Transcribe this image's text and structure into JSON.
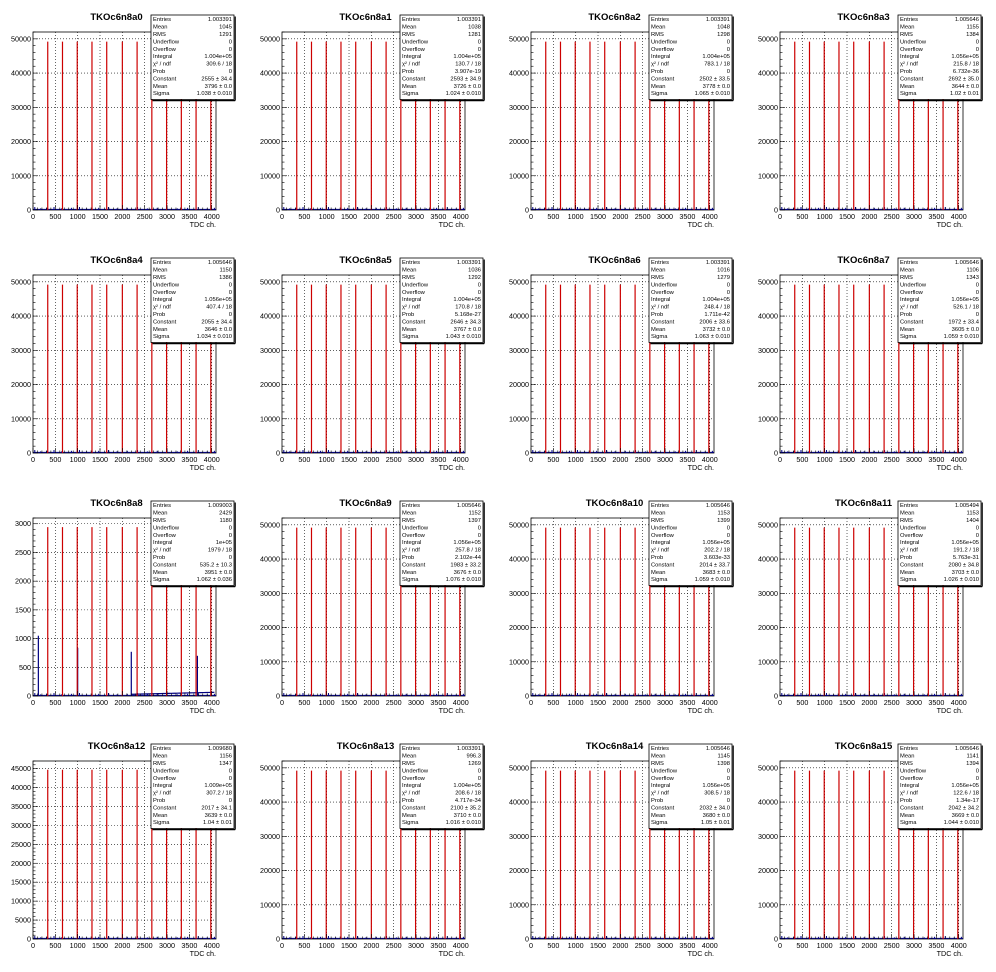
{
  "x_axis_label": "TDC ch.",
  "x_ticks": [
    "0",
    "500",
    "1000",
    "1500",
    "2000",
    "2500",
    "3000",
    "3500",
    "4000"
  ],
  "stats_labels": [
    "Entries",
    "Mean",
    "RMS",
    "Underflow",
    "Overflow",
    "Integral",
    "χ² / ndf",
    "Prob",
    "Constant",
    "Mean",
    "Sigma"
  ],
  "chart_data": [
    {
      "type": "bar",
      "title": "TKOc6n8a0",
      "xlim": [
        0,
        4096
      ],
      "ylim": [
        0,
        52000
      ],
      "y_ticks": [
        0,
        10000,
        20000,
        30000,
        40000,
        50000
      ],
      "peaks": [
        330,
        660,
        990,
        1320,
        1650,
        2000,
        2330,
        2660,
        2990,
        3320,
        3650,
        3980
      ],
      "peak_height": 49200,
      "stats": [
        "1.003391",
        "1045",
        "1291",
        "0",
        "0",
        "1.004e+05",
        "309.6 / 18",
        "0",
        "2555 ± 34.4",
        "3796 ± 0.0",
        "1.038 ± 0.010"
      ]
    },
    {
      "type": "bar",
      "title": "TKOc6n8a1",
      "xlim": [
        0,
        4096
      ],
      "ylim": [
        0,
        52000
      ],
      "y_ticks": [
        0,
        10000,
        20000,
        30000,
        40000,
        50000
      ],
      "peaks": [
        330,
        660,
        990,
        1320,
        1650,
        2000,
        2330,
        2660,
        2990,
        3320,
        3650,
        3980
      ],
      "peak_height": 49200,
      "stats": [
        "1.003391",
        "1038",
        "1281",
        "0",
        "0",
        "1.004e+05",
        "130.7 / 18",
        "3.907e-19",
        "2593 ± 34.9",
        "3726 ± 0.0",
        "1.024 ± 0.010"
      ]
    },
    {
      "type": "bar",
      "title": "TKOc6n8a2",
      "xlim": [
        0,
        4096
      ],
      "ylim": [
        0,
        52000
      ],
      "y_ticks": [
        0,
        10000,
        20000,
        30000,
        40000,
        50000
      ],
      "peaks": [
        330,
        660,
        990,
        1320,
        1650,
        2000,
        2330,
        2660,
        2990,
        3320,
        3650,
        3980
      ],
      "peak_height": 49200,
      "stats": [
        "1.003391",
        "1048",
        "1298",
        "0",
        "0",
        "1.004e+05",
        "783.1 / 18",
        "0",
        "2502 ± 33.5",
        "3778 ± 0.0",
        "1.065 ± 0.010"
      ]
    },
    {
      "type": "bar",
      "title": "TKOc6n8a3",
      "xlim": [
        0,
        4096
      ],
      "ylim": [
        0,
        52000
      ],
      "y_ticks": [
        0,
        10000,
        20000,
        30000,
        40000,
        50000
      ],
      "peaks": [
        330,
        660,
        990,
        1320,
        1650,
        2000,
        2330,
        2660,
        2990,
        3320,
        3650,
        3980
      ],
      "peak_height": 49200,
      "stats": [
        "1.005646",
        "1155",
        "1384",
        "0",
        "0",
        "1.056e+05",
        "215.8 / 18",
        "6.732e-36",
        "2692 ± 35.0",
        "3644 ± 0.0",
        "1.02 ± 0.01"
      ]
    },
    {
      "type": "bar",
      "title": "TKOc6n8a4",
      "xlim": [
        0,
        4096
      ],
      "ylim": [
        0,
        52000
      ],
      "y_ticks": [
        0,
        10000,
        20000,
        30000,
        40000,
        50000
      ],
      "peaks": [
        330,
        660,
        990,
        1320,
        1650,
        2000,
        2330,
        2660,
        2990,
        3320,
        3650,
        3980
      ],
      "peak_height": 49200,
      "stats": [
        "1.005646",
        "1150",
        "1386",
        "0",
        "0",
        "1.056e+05",
        "407.4 / 18",
        "0",
        "2055 ± 34.4",
        "3646 ± 0.0",
        "1.034 ± 0.010"
      ]
    },
    {
      "type": "bar",
      "title": "TKOc6n8a5",
      "xlim": [
        0,
        4096
      ],
      "ylim": [
        0,
        52000
      ],
      "y_ticks": [
        0,
        10000,
        20000,
        30000,
        40000,
        50000
      ],
      "peaks": [
        330,
        660,
        990,
        1320,
        1650,
        2000,
        2330,
        2660,
        2990,
        3320,
        3650,
        3980
      ],
      "peak_height": 49200,
      "stats": [
        "1.003391",
        "1036",
        "1292",
        "0",
        "0",
        "1.004e+05",
        "170.8 / 18",
        "5.168e-27",
        "2646 ± 34.3",
        "3767 ± 0.0",
        "1.043 ± 0.010"
      ]
    },
    {
      "type": "bar",
      "title": "TKOc6n8a6",
      "xlim": [
        0,
        4096
      ],
      "ylim": [
        0,
        52000
      ],
      "y_ticks": [
        0,
        10000,
        20000,
        30000,
        40000,
        50000
      ],
      "peaks": [
        330,
        660,
        990,
        1320,
        1650,
        2000,
        2330,
        2660,
        2990,
        3320,
        3650,
        3980
      ],
      "peak_height": 49200,
      "stats": [
        "1.003391",
        "1016",
        "1279",
        "0",
        "0",
        "1.004e+05",
        "248.4 / 18",
        "1.711e-42",
        "2006 ± 33.6",
        "3732 ± 0.0",
        "1.063 ± 0.010"
      ]
    },
    {
      "type": "bar",
      "title": "TKOc6n8a7",
      "xlim": [
        0,
        4096
      ],
      "ylim": [
        0,
        52000
      ],
      "y_ticks": [
        0,
        10000,
        20000,
        30000,
        40000,
        50000
      ],
      "peaks": [
        330,
        660,
        990,
        1320,
        1650,
        2000,
        2330,
        2660,
        2990,
        3320,
        3650,
        3980
      ],
      "peak_height": 49200,
      "stats": [
        "1.005646",
        "1106",
        "1343",
        "0",
        "0",
        "1.056e+05",
        "526.1 / 18",
        "0",
        "1972 ± 33.4",
        "3605 ± 0.0",
        "1.059 ± 0.010"
      ]
    },
    {
      "type": "bar",
      "title": "TKOc6n8a8",
      "xlim": [
        0,
        4096
      ],
      "ylim": [
        0,
        3100
      ],
      "y_ticks": [
        0,
        500,
        1000,
        1500,
        2000,
        2500,
        3000
      ],
      "peaks": [
        330,
        660,
        990,
        1320,
        1650,
        2000,
        2330,
        2660,
        2990,
        3320,
        3650,
        3980
      ],
      "peak_height": 2940,
      "stats": [
        "1.009003",
        "2429",
        "1180",
        "0",
        "0",
        "1e+05",
        "1979 / 18",
        "0",
        "535.2 ± 10.3",
        "3951 ± 0.0",
        "1.062 ± 0.036"
      ]
    },
    {
      "type": "bar",
      "title": "TKOc6n8a9",
      "xlim": [
        0,
        4096
      ],
      "ylim": [
        0,
        52000
      ],
      "y_ticks": [
        0,
        10000,
        20000,
        30000,
        40000,
        50000
      ],
      "peaks": [
        330,
        660,
        990,
        1320,
        1650,
        2000,
        2330,
        2660,
        2990,
        3320,
        3650,
        3980
      ],
      "peak_height": 49200,
      "stats": [
        "1.005646",
        "1152",
        "1397",
        "0",
        "0",
        "1.056e+05",
        "257.8 / 18",
        "2.102e-44",
        "1983 ± 33.2",
        "3676 ± 0.0",
        "1.076 ± 0.010"
      ]
    },
    {
      "type": "bar",
      "title": "TKOc6n8a10",
      "xlim": [
        0,
        4096
      ],
      "ylim": [
        0,
        52000
      ],
      "y_ticks": [
        0,
        10000,
        20000,
        30000,
        40000,
        50000
      ],
      "peaks": [
        330,
        660,
        990,
        1320,
        1650,
        2000,
        2330,
        2660,
        2990,
        3320,
        3650,
        3980
      ],
      "peak_height": 49200,
      "stats": [
        "1.005646",
        "1153",
        "1399",
        "0",
        "0",
        "1.056e+05",
        "202.2 / 18",
        "3.603e-33",
        "2014 ± 33.7",
        "3683 ± 0.0",
        "1.059 ± 0.010"
      ]
    },
    {
      "type": "bar",
      "title": "TKOc6n8a11",
      "xlim": [
        0,
        4096
      ],
      "ylim": [
        0,
        52000
      ],
      "y_ticks": [
        0,
        10000,
        20000,
        30000,
        40000,
        50000
      ],
      "peaks": [
        330,
        660,
        990,
        1320,
        1650,
        2000,
        2330,
        2660,
        2990,
        3320,
        3650,
        3980
      ],
      "peak_height": 49200,
      "stats": [
        "1.005494",
        "1153",
        "1404",
        "0",
        "0",
        "1.056e+05",
        "191.2 / 18",
        "5.763e-31",
        "2080 ± 34.8",
        "3703 ± 0.0",
        "1.026 ± 0.010"
      ]
    },
    {
      "type": "bar",
      "title": "TKOc6n8a12",
      "xlim": [
        0,
        4096
      ],
      "ylim": [
        0,
        47000
      ],
      "y_ticks": [
        0,
        5000,
        10000,
        15000,
        20000,
        25000,
        30000,
        35000,
        40000,
        45000
      ],
      "peaks": [
        330,
        660,
        990,
        1320,
        1650,
        2000,
        2330,
        2660,
        2990,
        3320,
        3650,
        3980
      ],
      "peak_height": 44700,
      "stats": [
        "1.009680",
        "1156",
        "1347",
        "0",
        "0",
        "1.009e+05",
        "307.2 / 18",
        "0",
        "2017 ± 34.1",
        "3639 ± 0.0",
        "1.04 ± 0.01"
      ]
    },
    {
      "type": "bar",
      "title": "TKOc6n8a13",
      "xlim": [
        0,
        4096
      ],
      "ylim": [
        0,
        52000
      ],
      "y_ticks": [
        0,
        10000,
        20000,
        30000,
        40000,
        50000
      ],
      "peaks": [
        330,
        660,
        990,
        1320,
        1650,
        2000,
        2330,
        2660,
        2990,
        3320,
        3650,
        3980
      ],
      "peak_height": 49200,
      "stats": [
        "1.003391",
        "996.3",
        "1269",
        "0",
        "0",
        "1.004e+05",
        "208.6 / 18",
        "4.717e-34",
        "2100 ± 35.2",
        "3710 ± 0.0",
        "1.016 ± 0.010"
      ]
    },
    {
      "type": "bar",
      "title": "TKOc6n8a14",
      "xlim": [
        0,
        4096
      ],
      "ylim": [
        0,
        52000
      ],
      "y_ticks": [
        0,
        10000,
        20000,
        30000,
        40000,
        50000
      ],
      "peaks": [
        330,
        660,
        990,
        1320,
        1650,
        2000,
        2330,
        2660,
        2990,
        3320,
        3650,
        3980
      ],
      "peak_height": 49200,
      "stats": [
        "1.005646",
        "1145",
        "1398",
        "0",
        "0",
        "1.056e+05",
        "308.5 / 18",
        "0",
        "2032 ± 34.0",
        "3680 ± 0.0",
        "1.05 ± 0.01"
      ]
    },
    {
      "type": "bar",
      "title": "TKOc6n8a15",
      "xlim": [
        0,
        4096
      ],
      "ylim": [
        0,
        52000
      ],
      "y_ticks": [
        0,
        10000,
        20000,
        30000,
        40000,
        50000
      ],
      "peaks": [
        330,
        660,
        990,
        1320,
        1650,
        2000,
        2330,
        2660,
        2990,
        3320,
        3650,
        3980
      ],
      "peak_height": 49200,
      "stats": [
        "1.005646",
        "1141",
        "1394",
        "0",
        "0",
        "1.056e+05",
        "122.6 / 18",
        "1.34e-17",
        "2042 ± 34.2",
        "3669 ± 0.0",
        "1.044 ± 0.010"
      ]
    }
  ],
  "colors": {
    "peak": "#cc0000",
    "baseline": "#000080",
    "frame": "#000000",
    "grid": "#000000"
  }
}
